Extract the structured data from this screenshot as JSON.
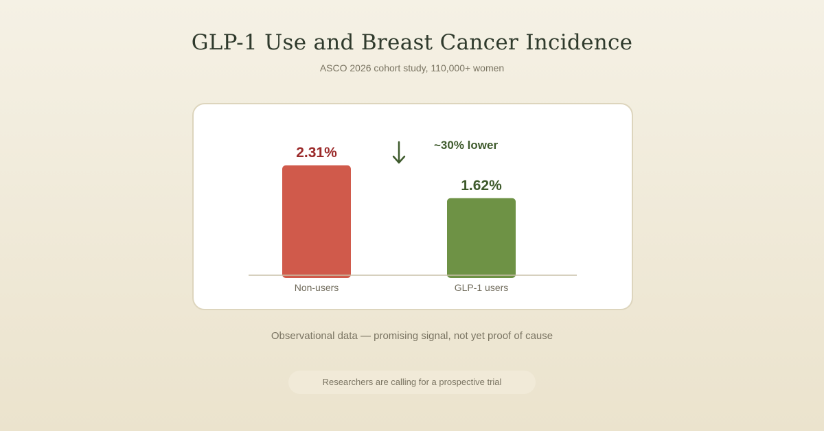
{
  "header": {
    "title": "GLP-1 Use and Breast Cancer Incidence",
    "subtitle": "ASCO 2026 cohort study, 110,000+ women"
  },
  "chart_data": {
    "type": "bar",
    "title": "",
    "xlabel": "",
    "ylabel": "",
    "ylim": [
      0,
      2.8
    ],
    "grid": false,
    "categories": [
      "Non-users",
      "GLP-1 users"
    ],
    "values": [
      2.31,
      1.62
    ],
    "value_labels": [
      "2.31%",
      "1.62%"
    ],
    "bar_colors": [
      "#d05a4b",
      "#6e9245"
    ],
    "label_colors": [
      "#9b2a2a",
      "#3e5a2c"
    ],
    "annotation": {
      "text": "~30% lower",
      "arrow_icon": "down-arrow-icon",
      "color": "#3e5a2c"
    }
  },
  "footer": {
    "note": "Observational data — promising signal, not yet proof of cause",
    "callout": "Researchers are calling for a prospective trial"
  }
}
